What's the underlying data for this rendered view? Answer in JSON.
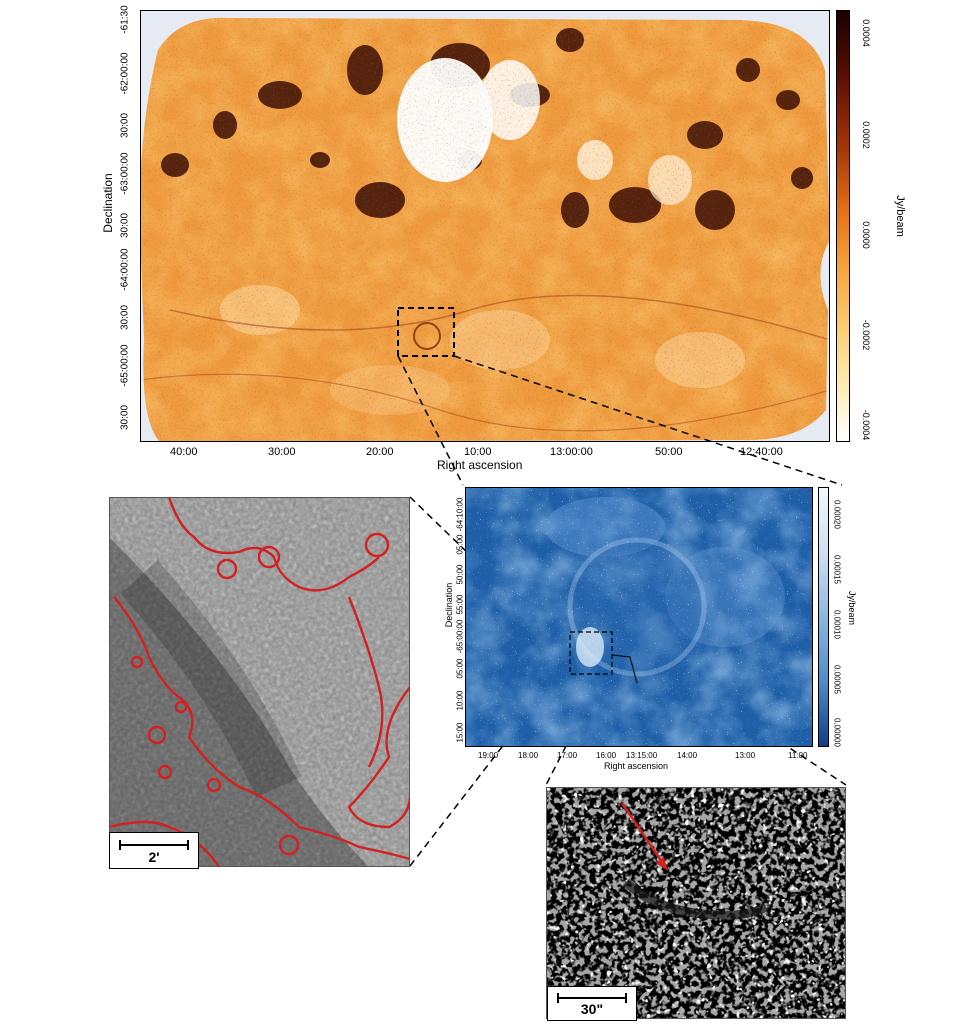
{
  "main_panel": {
    "xlabel": "Right ascension",
    "ylabel": "Declination",
    "colorbar_label": "Jy/beam",
    "ra_ticks": [
      "40:00",
      "30:00",
      "20:00",
      "10:00",
      "13:00:00",
      "50:00",
      "12:40:00"
    ],
    "dec_ticks": [
      "-61:30",
      "-62:00:00",
      "30:00",
      "-63:00:00",
      "30:00",
      "-64:00:00",
      "30:00",
      "-65:00:00",
      "30:00"
    ],
    "colorbar_ticks": [
      "0.0004",
      "0.0002",
      "0.0000",
      "-0.0002",
      "-0.0004"
    ],
    "colormap": "orange-hot"
  },
  "zoom_panel": {
    "xlabel": "Right ascension",
    "ylabel": "Declination",
    "colorbar_label": "Jy/beam",
    "ra_ticks": [
      "19:00",
      "18:00",
      "17:00",
      "16:00",
      "13:15:00",
      "14:00",
      "13:00",
      "11:00"
    ],
    "dec_ticks": [
      "-64:10:00",
      "05:00",
      "50:00",
      "55:00",
      "-65:00:00",
      "05:00",
      "10:00",
      "15:00"
    ],
    "colorbar_ticks": [
      "0.00020",
      "0.00015",
      "0.00010",
      "0.00005",
      "0.00000"
    ],
    "colormap": "blue"
  },
  "left_inset": {
    "scale_label": "2'",
    "contour_color": "#d42020"
  },
  "right_inset": {
    "scale_label": "30\"",
    "arrow_color": "#d42020"
  }
}
